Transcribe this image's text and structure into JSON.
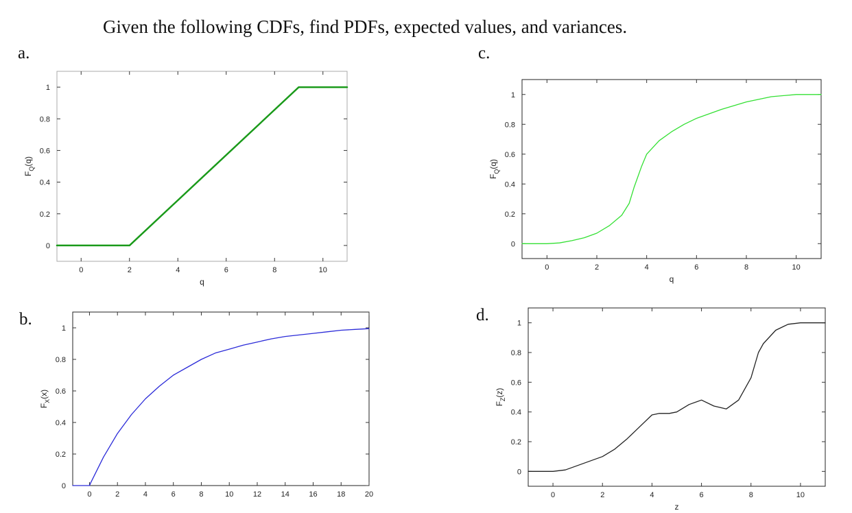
{
  "header": {
    "title": "Given the following CDFs, find PDFs, expected values, and variances."
  },
  "chart_data": [
    {
      "panel": "a.",
      "type": "line",
      "color": "#1a9a1a",
      "ylabel_main": "F",
      "ylabel_sub": "Q",
      "ylabel_tail": "(q)",
      "xlabel": "q",
      "xlim": [
        -1,
        11
      ],
      "ylim": [
        -0.1,
        1.1
      ],
      "xticks": [
        0,
        2,
        4,
        6,
        8,
        10
      ],
      "yticks": [
        0,
        0.2,
        0.4,
        0.6,
        0.8,
        1
      ],
      "series": [
        {
          "x": [
            -1,
            2,
            9,
            11
          ],
          "y": [
            0,
            0,
            1,
            1
          ]
        }
      ]
    },
    {
      "panel": "b.",
      "type": "line",
      "color": "#2a2ad8",
      "ylabel_main": "F",
      "ylabel_sub": "X",
      "ylabel_tail": "(x)",
      "xlabel": "",
      "xlim": [
        -1.2,
        20
      ],
      "ylim": [
        0,
        1.1
      ],
      "xticks": [
        0,
        2,
        4,
        6,
        8,
        10,
        12,
        14,
        16,
        18,
        20
      ],
      "yticks": [
        0,
        0.2,
        0.4,
        0.6,
        0.8,
        1
      ],
      "series": [
        {
          "x": [
            -1.2,
            0,
            0.1,
            1,
            2,
            3,
            4,
            5,
            6,
            7,
            8,
            9,
            10,
            11,
            12,
            13,
            14,
            15,
            16,
            17,
            18,
            19,
            20
          ],
          "y": [
            0,
            0,
            0.02,
            0.18,
            0.33,
            0.45,
            0.55,
            0.63,
            0.7,
            0.75,
            0.8,
            0.84,
            0.865,
            0.89,
            0.91,
            0.93,
            0.945,
            0.955,
            0.965,
            0.975,
            0.985,
            0.99,
            0.995
          ]
        }
      ]
    },
    {
      "panel": "c.",
      "type": "line",
      "color": "#33e033",
      "ylabel_main": "F",
      "ylabel_sub": "Q",
      "ylabel_tail": "(q)",
      "xlabel": "q",
      "xlim": [
        -1,
        11
      ],
      "ylim": [
        -0.1,
        1.1
      ],
      "xticks": [
        0,
        2,
        4,
        6,
        8,
        10
      ],
      "yticks": [
        0,
        0.2,
        0.4,
        0.6,
        0.8,
        1
      ],
      "series": [
        {
          "x": [
            -1,
            0,
            0.5,
            1,
            1.5,
            2,
            2.5,
            3,
            3.3,
            3.5,
            3.8,
            4,
            4.5,
            5,
            5.5,
            6,
            7,
            8,
            9,
            10,
            11
          ],
          "y": [
            0,
            0,
            0.005,
            0.02,
            0.04,
            0.07,
            0.12,
            0.19,
            0.27,
            0.38,
            0.52,
            0.6,
            0.69,
            0.75,
            0.8,
            0.84,
            0.9,
            0.95,
            0.985,
            1,
            1
          ]
        }
      ]
    },
    {
      "panel": "d.",
      "type": "line",
      "color": "#222222",
      "ylabel_main": "F",
      "ylabel_sub": "Z",
      "ylabel_tail": "(z)",
      "xlabel": "z",
      "xlim": [
        -1,
        11
      ],
      "ylim": [
        -0.1,
        1.1
      ],
      "xticks": [
        0,
        2,
        4,
        6,
        8,
        10
      ],
      "yticks": [
        0,
        0.2,
        0.4,
        0.6,
        0.8,
        1
      ],
      "series": [
        {
          "x": [
            -1,
            0,
            0.5,
            1,
            1.5,
            2,
            2.5,
            3,
            3.5,
            4,
            4.3,
            4.7,
            5,
            5.5,
            6,
            6.5,
            7,
            7.5,
            8,
            8.3,
            8.5,
            9,
            9.5,
            10,
            11
          ],
          "y": [
            0,
            0,
            0.01,
            0.04,
            0.07,
            0.1,
            0.15,
            0.22,
            0.3,
            0.38,
            0.39,
            0.39,
            0.4,
            0.45,
            0.48,
            0.44,
            0.42,
            0.48,
            0.63,
            0.8,
            0.86,
            0.95,
            0.99,
            1,
            1
          ]
        }
      ]
    }
  ]
}
